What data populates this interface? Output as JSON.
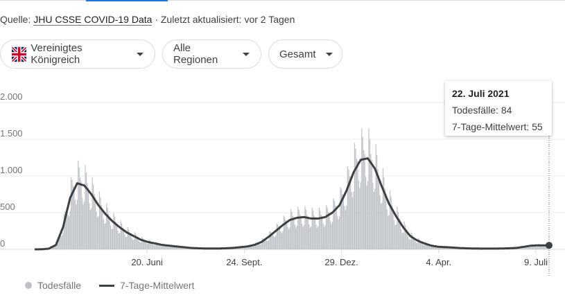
{
  "source": {
    "prefix": "Quelle:",
    "link": "JHU CSSE COVID-19 Data",
    "suffix": "· Zuletzt aktualisiert: vor 2 Tagen"
  },
  "filters": [
    {
      "label": "Vereinigtes Königreich",
      "icon": "uk-flag-icon"
    },
    {
      "label": "Alle Regionen"
    },
    {
      "label": "Gesamt"
    }
  ],
  "tooltip": {
    "date": "22. Juli 2021",
    "deaths": "Todesfälle: 84",
    "avg": "7-Tage-Mittelwert: 55"
  },
  "legend": {
    "bars": "Todesfälle",
    "line": "7-Tage-Mittelwert"
  },
  "colors": {
    "bars": "#bdc1c6",
    "line": "#3c4043",
    "tab": "#1a73e8"
  },
  "chart_data": {
    "type": "bar+line",
    "x_start": "2020-03-01",
    "x_end": "2021-07-22",
    "x_step": "weekly",
    "ylim": [
      0,
      2000
    ],
    "yticks": [
      {
        "v": 0,
        "l": "0"
      },
      {
        "v": 500,
        "l": "500"
      },
      {
        "v": 1000,
        "l": "1.000"
      },
      {
        "v": 1500,
        "l": "1.500"
      },
      {
        "v": 2000,
        "l": "2.000"
      }
    ],
    "xticks": [
      {
        "d": "2020-06-20",
        "l": "20. Juni"
      },
      {
        "d": "2020-09-24",
        "l": "24. Sept."
      },
      {
        "d": "2020-12-29",
        "l": "29. Dez."
      },
      {
        "d": "2021-04-04",
        "l": "4. Apr."
      },
      {
        "d": "2021-07-09",
        "l": "9. Juli"
      }
    ],
    "series": [
      {
        "name": "7-Tage-Mittelwert",
        "weekly_values": [
          0,
          1,
          10,
          60,
          300,
          700,
          900,
          870,
          750,
          600,
          480,
          380,
          300,
          230,
          180,
          130,
          100,
          80,
          60,
          50,
          40,
          30,
          20,
          15,
          12,
          12,
          12,
          15,
          20,
          30,
          40,
          60,
          100,
          170,
          250,
          330,
          400,
          430,
          440,
          420,
          420,
          440,
          500,
          600,
          800,
          1050,
          1220,
          1240,
          1100,
          850,
          620,
          450,
          300,
          180,
          120,
          80,
          50,
          35,
          30,
          25,
          18,
          14,
          12,
          10,
          10,
          10,
          12,
          15,
          20,
          35,
          50,
          55
        ]
      }
    ],
    "highlight": {
      "date": "2021-07-22",
      "deaths": 84,
      "avg": 55
    }
  }
}
